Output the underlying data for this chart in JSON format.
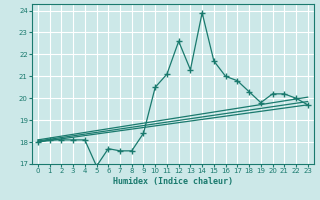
{
  "title": "",
  "xlabel": "Humidex (Indice chaleur)",
  "xlim": [
    -0.5,
    23.5
  ],
  "ylim": [
    17,
    24.3
  ],
  "yticks": [
    17,
    18,
    19,
    20,
    21,
    22,
    23,
    24
  ],
  "xticks": [
    0,
    1,
    2,
    3,
    4,
    5,
    6,
    7,
    8,
    9,
    10,
    11,
    12,
    13,
    14,
    15,
    16,
    17,
    18,
    19,
    20,
    21,
    22,
    23
  ],
  "bg_color": "#cce8e8",
  "line_color": "#1a7a6e",
  "grid_color": "#b0d0d0",
  "main_x": [
    0,
    1,
    2,
    3,
    4,
    5,
    6,
    7,
    8,
    9,
    10,
    11,
    12,
    13,
    14,
    15,
    16,
    17,
    18,
    19,
    20,
    21,
    22,
    23
  ],
  "main_y": [
    18.0,
    18.1,
    18.1,
    18.1,
    18.1,
    16.9,
    17.7,
    17.6,
    17.6,
    18.4,
    20.5,
    21.1,
    22.6,
    21.3,
    23.9,
    21.7,
    21.0,
    20.8,
    20.3,
    19.8,
    20.2,
    20.2,
    20.0,
    19.7
  ],
  "reg_lines": [
    {
      "x": [
        0,
        23
      ],
      "y": [
        18.0,
        19.7
      ]
    },
    {
      "x": [
        0,
        23
      ],
      "y": [
        18.05,
        19.85
      ]
    },
    {
      "x": [
        0,
        23
      ],
      "y": [
        18.1,
        20.05
      ]
    }
  ]
}
